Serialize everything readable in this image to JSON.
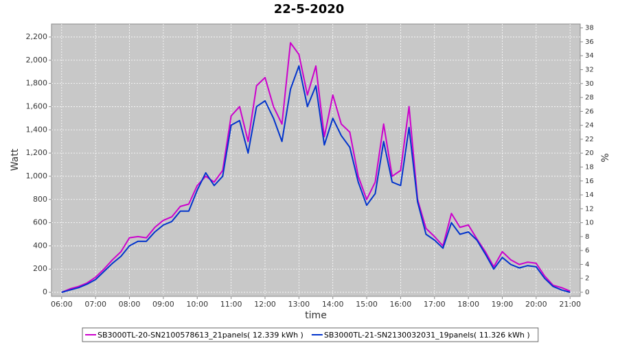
{
  "chart_data": {
    "type": "line",
    "title": "22-5-2020",
    "xlabel": "time",
    "ylabel": "Watt",
    "y2label": "%",
    "x": [
      6,
      6.25,
      6.5,
      6.75,
      7,
      7.25,
      7.5,
      7.75,
      8,
      8.25,
      8.5,
      8.75,
      9,
      9.25,
      9.5,
      9.75,
      10,
      10.25,
      10.5,
      10.75,
      11,
      11.25,
      11.5,
      11.75,
      12,
      12.25,
      12.5,
      12.75,
      13,
      13.25,
      13.5,
      13.75,
      14,
      14.25,
      14.5,
      14.75,
      15,
      15.25,
      15.5,
      15.75,
      16,
      16.25,
      16.5,
      16.75,
      17,
      17.25,
      17.5,
      17.75,
      18,
      18.25,
      18.5,
      18.75,
      19,
      19.25,
      19.5,
      19.75,
      20,
      20.25,
      20.5,
      20.75,
      21
    ],
    "series": [
      {
        "name": "SB3000TL-20-SN2100578613_21panels( 12.339 kWh )",
        "color": "#cc00cc",
        "values": [
          0,
          30,
          50,
          80,
          130,
          200,
          280,
          350,
          470,
          480,
          470,
          560,
          620,
          650,
          740,
          760,
          920,
          1000,
          950,
          1050,
          1520,
          1600,
          1300,
          1780,
          1850,
          1600,
          1450,
          2150,
          2050,
          1700,
          1950,
          1340,
          1700,
          1450,
          1380,
          1000,
          800,
          950,
          1450,
          1000,
          1050,
          1600,
          800,
          550,
          480,
          400,
          680,
          560,
          580,
          460,
          350,
          220,
          350,
          280,
          240,
          260,
          250,
          140,
          60,
          40,
          10
        ]
      },
      {
        "name": "SB3000TL-21-SN2130032031_19panels( 11.326 kWh )",
        "color": "#0033cc",
        "values": [
          0,
          20,
          40,
          70,
          110,
          180,
          250,
          310,
          400,
          440,
          440,
          520,
          580,
          610,
          700,
          700,
          880,
          1030,
          920,
          1000,
          1440,
          1480,
          1200,
          1600,
          1650,
          1500,
          1300,
          1750,
          1950,
          1600,
          1780,
          1270,
          1500,
          1350,
          1250,
          950,
          750,
          850,
          1300,
          950,
          920,
          1420,
          780,
          500,
          450,
          380,
          600,
          500,
          520,
          450,
          330,
          200,
          300,
          240,
          210,
          230,
          220,
          120,
          50,
          20,
          0
        ]
      }
    ],
    "xlim": [
      5.7,
      21.3
    ],
    "xticks": [
      {
        "value": 6,
        "label": "06:00"
      },
      {
        "value": 7,
        "label": "07:00"
      },
      {
        "value": 8,
        "label": "08:00"
      },
      {
        "value": 9,
        "label": "09:00"
      },
      {
        "value": 10,
        "label": "10:00"
      },
      {
        "value": 11,
        "label": "11:00"
      },
      {
        "value": 12,
        "label": "12:00"
      },
      {
        "value": 13,
        "label": "13:00"
      },
      {
        "value": 14,
        "label": "14:00"
      },
      {
        "value": 15,
        "label": "15:00"
      },
      {
        "value": 16,
        "label": "16:00"
      },
      {
        "value": 17,
        "label": "17:00"
      },
      {
        "value": 18,
        "label": "18:00"
      },
      {
        "value": 19,
        "label": "19:00"
      },
      {
        "value": 20,
        "label": "20:00"
      },
      {
        "value": 21,
        "label": "21:00"
      }
    ],
    "ylim": [
      -35,
      2312
    ],
    "yticks": [
      0,
      200,
      400,
      600,
      800,
      {
        "value": 1000,
        "label": "1,000"
      },
      {
        "value": 1200,
        "label": "1,200"
      },
      {
        "value": 1400,
        "label": "1,400"
      },
      {
        "value": 1600,
        "label": "1,600"
      },
      {
        "value": 1800,
        "label": "1,800"
      },
      {
        "value": 2000,
        "label": "2,000"
      },
      {
        "value": 2200,
        "label": "2,200"
      }
    ],
    "y2lim": [
      -0.59,
      38.56
    ],
    "y2ticks": [
      0,
      2,
      4,
      6,
      8,
      10,
      12,
      14,
      16,
      18,
      20,
      22,
      24,
      26,
      28,
      30,
      32,
      34,
      36,
      38
    ],
    "grid": true,
    "background": "#c8c8c8",
    "legend": "bottom"
  }
}
